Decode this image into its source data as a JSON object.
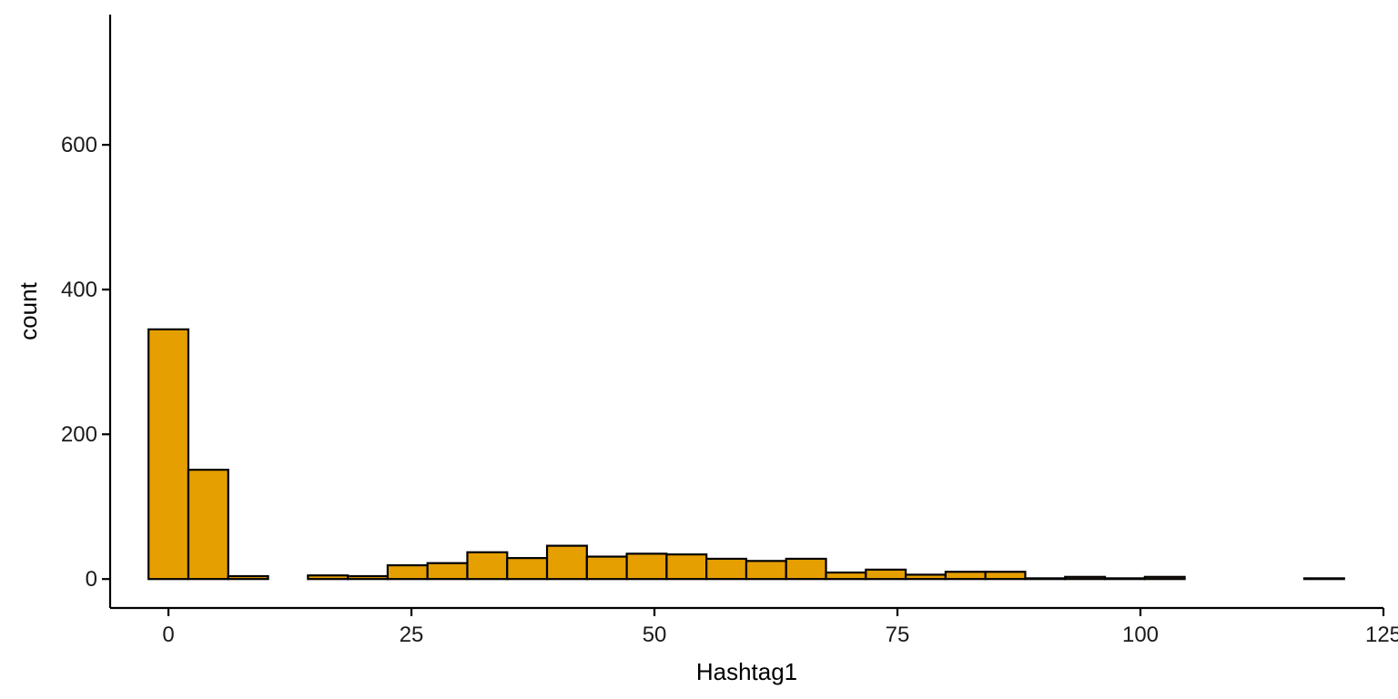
{
  "chart_data": {
    "type": "bar",
    "title": "",
    "xlabel": "Hashtag1",
    "ylabel": "count",
    "xlim": [
      -6,
      125
    ],
    "ylim": [
      -40,
      780
    ],
    "x_ticks": [
      0,
      25,
      50,
      75,
      100,
      125
    ],
    "y_ticks": [
      0,
      200,
      400,
      600
    ],
    "bin_width": 4.1,
    "bin_start": -2.05,
    "bar_color": "#E69F00",
    "edge_color": "#000000",
    "grid": false,
    "legend": "none",
    "series": [
      {
        "values": [
          345,
          151,
          4,
          0,
          5,
          4,
          19,
          22,
          37,
          29,
          46,
          31,
          35,
          34,
          28,
          25,
          28,
          9,
          13,
          6,
          10,
          10,
          1,
          3,
          1,
          3,
          0,
          0,
          0,
          1
        ]
      }
    ]
  }
}
